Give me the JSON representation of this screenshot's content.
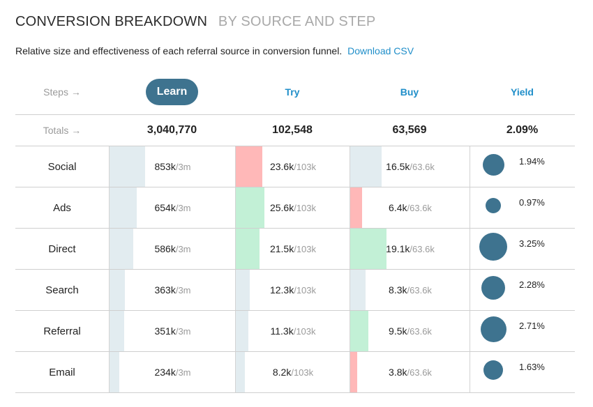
{
  "title": {
    "main": "CONVERSION BREAKDOWN",
    "sub": "BY SOURCE AND STEP"
  },
  "description": {
    "text": "Relative size and effectiveness of each referral source in conversion funnel.",
    "link": "Download CSV"
  },
  "header": {
    "steps_label": "Steps →",
    "tabs": [
      {
        "label": "Learn",
        "active": true
      },
      {
        "label": "Try",
        "active": false
      },
      {
        "label": "Buy",
        "active": false
      },
      {
        "label": "Yield",
        "active": false
      }
    ]
  },
  "totals": {
    "label": "Totals →",
    "learn": "3,040,770",
    "try": "102,548",
    "buy": "63,569",
    "yield": "2.09%"
  },
  "colors": {
    "accent": "#3e738f",
    "link": "#1f8ec9",
    "neutral_bar": "#e2ecf0",
    "positive_bar": "#c2f0d6",
    "negative_bar": "#ffb8b8"
  },
  "rows": [
    {
      "source": "Social",
      "learn": {
        "value": "853k",
        "total": "/3m",
        "share": 0.28,
        "tone": "neutral"
      },
      "try": {
        "value": "23.6k",
        "total": "/103k",
        "share": 0.23,
        "tone": "negative"
      },
      "buy": {
        "value": "16.5k",
        "total": "/63.6k",
        "share": 0.26,
        "tone": "neutral"
      },
      "yield": {
        "value": "1.94%",
        "rate": 0.0194
      }
    },
    {
      "source": "Ads",
      "learn": {
        "value": "654k",
        "total": "/3m",
        "share": 0.215,
        "tone": "neutral"
      },
      "try": {
        "value": "25.6k",
        "total": "/103k",
        "share": 0.25,
        "tone": "positive"
      },
      "buy": {
        "value": "6.4k",
        "total": "/63.6k",
        "share": 0.1,
        "tone": "negative"
      },
      "yield": {
        "value": "0.97%",
        "rate": 0.0097
      }
    },
    {
      "source": "Direct",
      "learn": {
        "value": "586k",
        "total": "/3m",
        "share": 0.19,
        "tone": "neutral"
      },
      "try": {
        "value": "21.5k",
        "total": "/103k",
        "share": 0.21,
        "tone": "positive"
      },
      "buy": {
        "value": "19.1k",
        "total": "/63.6k",
        "share": 0.3,
        "tone": "positive"
      },
      "yield": {
        "value": "3.25%",
        "rate": 0.0325
      }
    },
    {
      "source": "Search",
      "learn": {
        "value": "363k",
        "total": "/3m",
        "share": 0.12,
        "tone": "neutral"
      },
      "try": {
        "value": "12.3k",
        "total": "/103k",
        "share": 0.12,
        "tone": "neutral"
      },
      "buy": {
        "value": "8.3k",
        "total": "/63.6k",
        "share": 0.13,
        "tone": "neutral"
      },
      "yield": {
        "value": "2.28%",
        "rate": 0.0228
      }
    },
    {
      "source": "Referral",
      "learn": {
        "value": "351k",
        "total": "/3m",
        "share": 0.115,
        "tone": "neutral"
      },
      "try": {
        "value": "11.3k",
        "total": "/103k",
        "share": 0.11,
        "tone": "neutral"
      },
      "buy": {
        "value": "9.5k",
        "total": "/63.6k",
        "share": 0.15,
        "tone": "positive"
      },
      "yield": {
        "value": "2.71%",
        "rate": 0.0271
      }
    },
    {
      "source": "Email",
      "learn": {
        "value": "234k",
        "total": "/3m",
        "share": 0.075,
        "tone": "neutral"
      },
      "try": {
        "value": "8.2k",
        "total": "/103k",
        "share": 0.08,
        "tone": "neutral"
      },
      "buy": {
        "value": "3.8k",
        "total": "/63.6k",
        "share": 0.06,
        "tone": "negative"
      },
      "yield": {
        "value": "1.63%",
        "rate": 0.0163
      }
    }
  ]
}
